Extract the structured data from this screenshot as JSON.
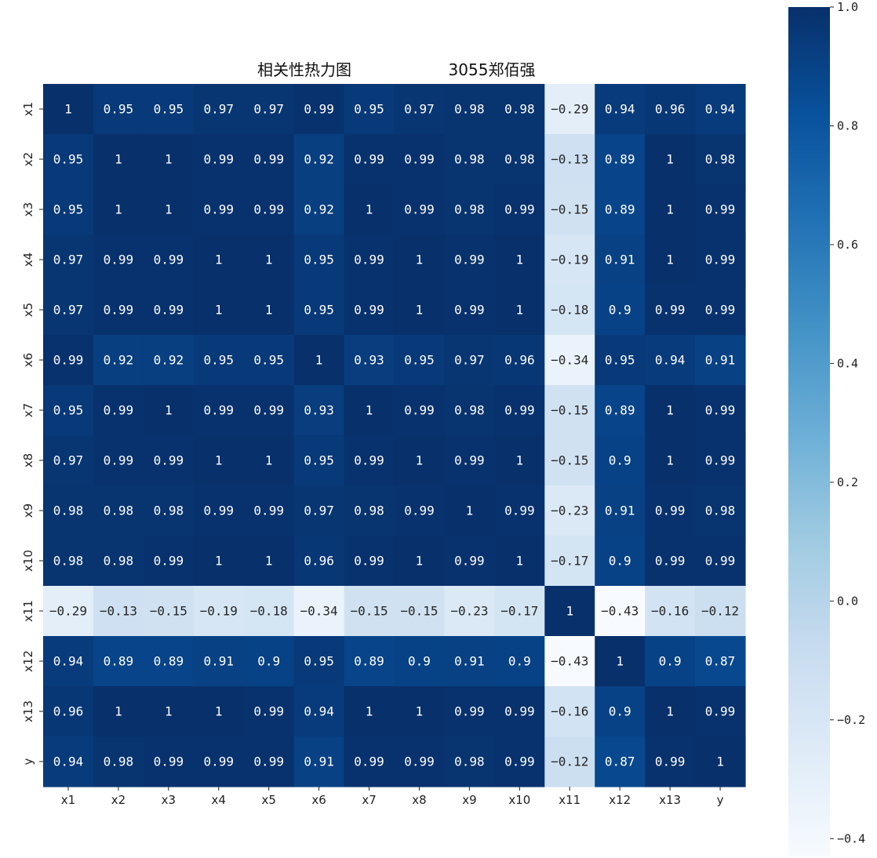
{
  "chart_data": {
    "type": "heatmap",
    "title": "相关性热力图",
    "subtitle": "3055郑佰强",
    "xlabel": "",
    "ylabel": "",
    "x_categories": [
      "x1",
      "x2",
      "x3",
      "x4",
      "x5",
      "x6",
      "x7",
      "x8",
      "x9",
      "x10",
      "x11",
      "x12",
      "x13",
      "y"
    ],
    "y_categories": [
      "x1",
      "x2",
      "x3",
      "x4",
      "x5",
      "x6",
      "x7",
      "x8",
      "x9",
      "x10",
      "x11",
      "x12",
      "x13",
      "y"
    ],
    "values": [
      [
        1,
        0.95,
        0.95,
        0.97,
        0.97,
        0.99,
        0.95,
        0.97,
        0.98,
        0.98,
        -0.29,
        0.94,
        0.96,
        0.94
      ],
      [
        0.95,
        1,
        1,
        0.99,
        0.99,
        0.92,
        0.99,
        0.99,
        0.98,
        0.98,
        -0.13,
        0.89,
        1,
        0.98
      ],
      [
        0.95,
        1,
        1,
        0.99,
        0.99,
        0.92,
        1,
        0.99,
        0.98,
        0.99,
        -0.15,
        0.89,
        1,
        0.99
      ],
      [
        0.97,
        0.99,
        0.99,
        1,
        1,
        0.95,
        0.99,
        1,
        0.99,
        1,
        -0.19,
        0.91,
        1,
        0.99
      ],
      [
        0.97,
        0.99,
        0.99,
        1,
        1,
        0.95,
        0.99,
        1,
        0.99,
        1,
        -0.18,
        0.9,
        0.99,
        0.99
      ],
      [
        0.99,
        0.92,
        0.92,
        0.95,
        0.95,
        1,
        0.93,
        0.95,
        0.97,
        0.96,
        -0.34,
        0.95,
        0.94,
        0.91
      ],
      [
        0.95,
        0.99,
        1,
        0.99,
        0.99,
        0.93,
        1,
        0.99,
        0.98,
        0.99,
        -0.15,
        0.89,
        1,
        0.99
      ],
      [
        0.97,
        0.99,
        0.99,
        1,
        1,
        0.95,
        0.99,
        1,
        0.99,
        1,
        -0.15,
        0.9,
        1,
        0.99
      ],
      [
        0.98,
        0.98,
        0.98,
        0.99,
        0.99,
        0.97,
        0.98,
        0.99,
        1,
        0.99,
        -0.23,
        0.91,
        0.99,
        0.98
      ],
      [
        0.98,
        0.98,
        0.99,
        1,
        1,
        0.96,
        0.99,
        1,
        0.99,
        1,
        -0.17,
        0.9,
        0.99,
        0.99
      ],
      [
        -0.29,
        -0.13,
        -0.15,
        -0.19,
        -0.18,
        -0.34,
        -0.15,
        -0.15,
        -0.23,
        -0.17,
        1,
        -0.43,
        -0.16,
        -0.12
      ],
      [
        0.94,
        0.89,
        0.89,
        0.91,
        0.9,
        0.95,
        0.89,
        0.9,
        0.91,
        0.9,
        -0.43,
        1,
        0.9,
        0.87
      ],
      [
        0.96,
        1,
        1,
        1,
        0.99,
        0.94,
        1,
        1,
        0.99,
        0.99,
        -0.16,
        0.9,
        1,
        0.99
      ],
      [
        0.94,
        0.98,
        0.99,
        0.99,
        0.99,
        0.91,
        0.99,
        0.99,
        0.98,
        0.99,
        -0.12,
        0.87,
        0.99,
        1
      ]
    ],
    "colormap": "Blues",
    "colorbar": {
      "range": [
        -0.43,
        1.0
      ],
      "ticks": [
        -0.4,
        -0.2,
        0.0,
        0.2,
        0.4,
        0.6,
        0.8,
        1.0
      ],
      "tick_labels": [
        "−0.4",
        "−0.2",
        "0.0",
        "0.2",
        "0.4",
        "0.6",
        "0.8",
        "1.0"
      ]
    },
    "annotations": true,
    "grid": false,
    "legend": "colorbar right"
  }
}
